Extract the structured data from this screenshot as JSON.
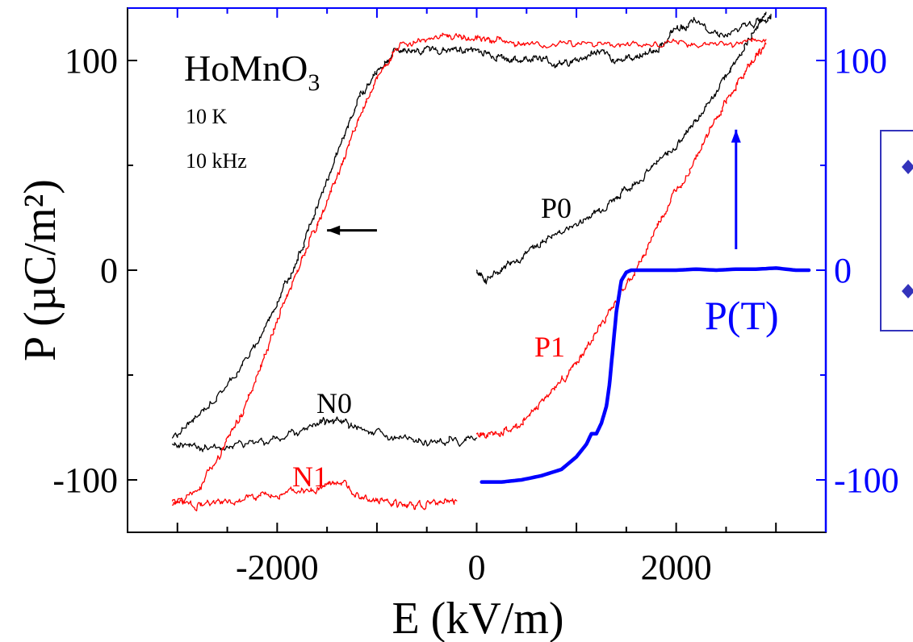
{
  "chart_data": {
    "type": "line",
    "title": "",
    "xlabel": "E (kV/m)",
    "ylabel": "P (µC/m²)",
    "xlim": [
      -3500,
      3500
    ],
    "ylim": [
      -125,
      125
    ],
    "x_ticks": [
      -2000,
      0,
      2000
    ],
    "y_ticks": [
      -100,
      0,
      100
    ],
    "right_y_ticks": [
      -100,
      0,
      100
    ],
    "grid": false,
    "colors": {
      "black": "#000000",
      "red": "#ff0000",
      "blue": "#0000ff",
      "marker": "#3333bb"
    },
    "annotations": {
      "sample_main": "HoMnO",
      "sample_sub": "3",
      "temperature": "10 K",
      "frequency": "10 kHz",
      "label_P0": "P0",
      "label_P1": "P1",
      "label_N0": "N0",
      "label_N1": "N1",
      "label_PT": "P(T)"
    },
    "series": [
      {
        "label_ref": "P0",
        "color": "black",
        "style": "noisy",
        "x": [
          0,
          100,
          300,
          500,
          700,
          1000,
          1200,
          1400,
          1600,
          1900,
          2100,
          2300,
          2500,
          2700,
          2900
        ],
        "y": [
          0,
          -5,
          3,
          8,
          15,
          22,
          28,
          35,
          42,
          55,
          65,
          78,
          92,
          108,
          123
        ]
      },
      {
        "label_ref": "N0",
        "color": "black",
        "style": "noisy",
        "x": [
          0,
          -300,
          -600,
          -900,
          -1200,
          -1400,
          -1600,
          -1900,
          -2200,
          -2500,
          -2800,
          -3050
        ],
        "y": [
          -80,
          -82,
          -82,
          -79,
          -76,
          -70,
          -73,
          -79,
          -82,
          -84,
          -85,
          -83
        ]
      },
      {
        "color": "black",
        "style": "noisy",
        "x": [
          -3050,
          -2800,
          -2500,
          -2200,
          -2000,
          -1800,
          -1600,
          -1400,
          -1200,
          -1000,
          -800,
          -600,
          -400,
          -200,
          0,
          200,
          400,
          600,
          800,
          1000,
          1200,
          1400,
          1600,
          1800,
          2000,
          2200,
          2500,
          2800,
          2950
        ],
        "y": [
          -80,
          -70,
          -55,
          -35,
          -15,
          5,
          30,
          55,
          80,
          95,
          105,
          105,
          105,
          105,
          105,
          102,
          100,
          102,
          98,
          100,
          104,
          100,
          102,
          105,
          115,
          118,
          112,
          118,
          122
        ]
      },
      {
        "label_ref": "P1",
        "color": "red",
        "style": "noisy",
        "x": [
          0,
          200,
          400,
          600,
          800,
          1000,
          1200,
          1400,
          1600,
          1800,
          2000,
          2200,
          2400,
          2600,
          2800,
          2900
        ],
        "y": [
          -78,
          -78,
          -75,
          -65,
          -55,
          -45,
          -30,
          -15,
          0,
          20,
          38,
          55,
          72,
          88,
          102,
          108
        ]
      },
      {
        "color": "red",
        "style": "noisy",
        "x": [
          2900,
          2500,
          2100,
          1700,
          1300,
          900,
          500,
          200,
          0,
          -200,
          -500,
          -800,
          -1000,
          -1200,
          -1400,
          -1600,
          -1800,
          -2000,
          -2200,
          -2400,
          -2600,
          -2800,
          -3050
        ],
        "y": [
          110,
          108,
          108,
          108,
          108,
          108,
          108,
          110,
          110,
          112,
          110,
          105,
          92,
          70,
          45,
          22,
          0,
          -25,
          -50,
          -72,
          -90,
          -105,
          -112
        ]
      },
      {
        "label_ref": "N1",
        "color": "red",
        "style": "noisy",
        "x": [
          -3050,
          -2800,
          -2500,
          -2200,
          -1900,
          -1600,
          -1400,
          -1200,
          -1000,
          -800,
          -600,
          -400,
          -200
        ],
        "y": [
          -110,
          -112,
          -111,
          -108,
          -106,
          -105,
          -101,
          -106,
          -110,
          -112,
          -112,
          -111,
          -110
        ]
      },
      {
        "label_ref": "PT",
        "color": "blue",
        "style": "thick",
        "x": [
          50,
          250,
          450,
          650,
          850,
          1000,
          1100,
          1150,
          1200,
          1250,
          1300,
          1330,
          1360,
          1400,
          1450,
          1500,
          1550,
          1600,
          1700,
          1800,
          2000,
          2200,
          2400,
          2600,
          2800,
          3000,
          3200,
          3330
        ],
        "y": [
          -101,
          -101,
          -100,
          -98,
          -95,
          -89,
          -83,
          -78,
          -78,
          -73,
          -65,
          -55,
          -40,
          -20,
          -5,
          -1,
          0,
          0,
          0,
          0,
          0,
          0.5,
          0,
          0.5,
          0.5,
          1,
          0,
          0
        ]
      }
    ],
    "arrows": [
      {
        "name": "left-axis-arrow",
        "from": [
          -1000,
          19
        ],
        "to": [
          -1500,
          19
        ],
        "color": "black"
      },
      {
        "name": "right-axis-arrow",
        "from": [
          2600,
          10
        ],
        "to": [
          2600,
          67
        ],
        "color": "blue"
      }
    ],
    "legend_box": {
      "markers": 2,
      "color": "#3333bb",
      "placement": "right",
      "clipped": true
    }
  }
}
